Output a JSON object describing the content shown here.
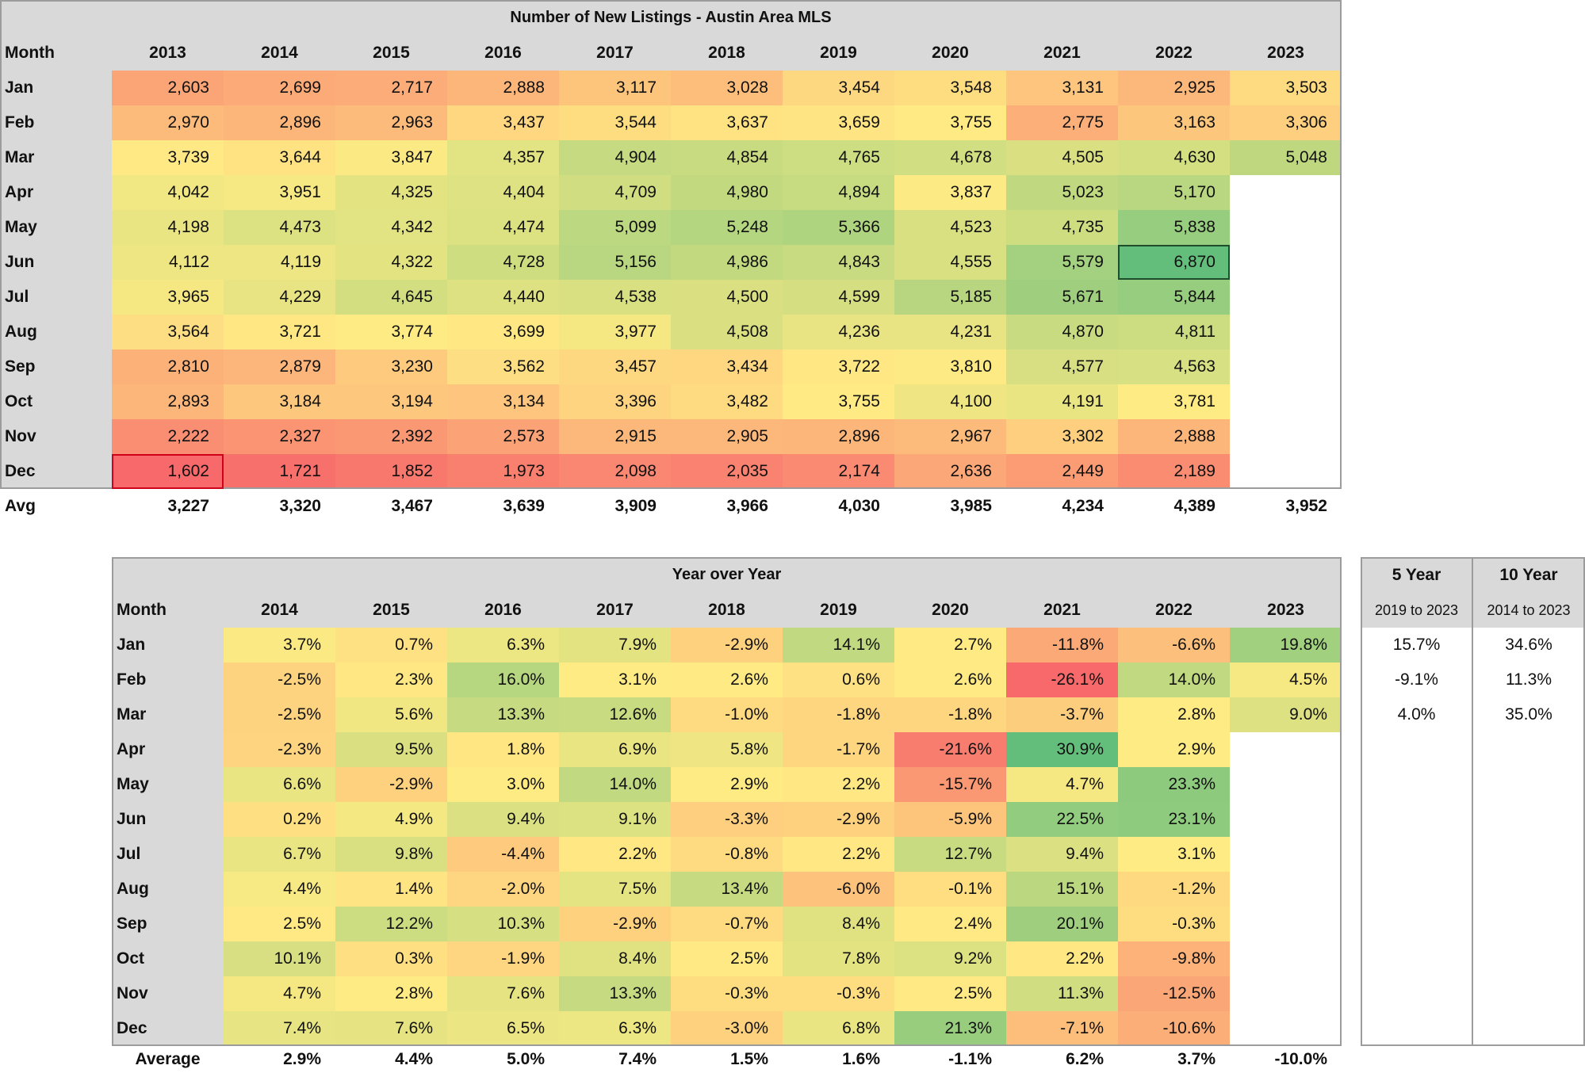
{
  "chart_data": [
    {
      "type": "table",
      "title": "Number of New Listings - Austin Area MLS",
      "row_header": "Month",
      "columns": [
        "2013",
        "2014",
        "2015",
        "2016",
        "2017",
        "2018",
        "2019",
        "2020",
        "2021",
        "2022",
        "2023"
      ],
      "rows": [
        {
          "month": "Jan",
          "values": [
            "2,603",
            "2,699",
            "2,717",
            "2,888",
            "3,117",
            "3,028",
            "3,454",
            "3,548",
            "3,131",
            "2,925",
            "3,503"
          ]
        },
        {
          "month": "Feb",
          "values": [
            "2,970",
            "2,896",
            "2,963",
            "3,437",
            "3,544",
            "3,637",
            "3,659",
            "3,755",
            "2,775",
            "3,163",
            "3,306"
          ]
        },
        {
          "month": "Mar",
          "values": [
            "3,739",
            "3,644",
            "3,847",
            "4,357",
            "4,904",
            "4,854",
            "4,765",
            "4,678",
            "4,505",
            "4,630",
            "5,048"
          ]
        },
        {
          "month": "Apr",
          "values": [
            "4,042",
            "3,951",
            "4,325",
            "4,404",
            "4,709",
            "4,980",
            "4,894",
            "3,837",
            "5,023",
            "5,170",
            ""
          ]
        },
        {
          "month": "May",
          "values": [
            "4,198",
            "4,473",
            "4,342",
            "4,474",
            "5,099",
            "5,248",
            "5,366",
            "4,523",
            "4,735",
            "5,838",
            ""
          ]
        },
        {
          "month": "Jun",
          "values": [
            "4,112",
            "4,119",
            "4,322",
            "4,728",
            "5,156",
            "4,986",
            "4,843",
            "4,555",
            "5,579",
            "6,870",
            ""
          ]
        },
        {
          "month": "Jul",
          "values": [
            "3,965",
            "4,229",
            "4,645",
            "4,440",
            "4,538",
            "4,500",
            "4,599",
            "5,185",
            "5,671",
            "5,844",
            ""
          ]
        },
        {
          "month": "Aug",
          "values": [
            "3,564",
            "3,721",
            "3,774",
            "3,699",
            "3,977",
            "4,508",
            "4,236",
            "4,231",
            "4,870",
            "4,811",
            ""
          ]
        },
        {
          "month": "Sep",
          "values": [
            "2,810",
            "2,879",
            "3,230",
            "3,562",
            "3,457",
            "3,434",
            "3,722",
            "3,810",
            "4,577",
            "4,563",
            ""
          ]
        },
        {
          "month": "Oct",
          "values": [
            "2,893",
            "3,184",
            "3,194",
            "3,134",
            "3,396",
            "3,482",
            "3,755",
            "4,100",
            "4,191",
            "3,781",
            ""
          ]
        },
        {
          "month": "Nov",
          "values": [
            "2,222",
            "2,327",
            "2,392",
            "2,573",
            "2,915",
            "2,905",
            "2,896",
            "2,967",
            "3,302",
            "2,888",
            ""
          ]
        },
        {
          "month": "Dec",
          "values": [
            "1,602",
            "1,721",
            "1,852",
            "1,973",
            "2,098",
            "2,035",
            "2,174",
            "2,636",
            "2,449",
            "2,189",
            ""
          ]
        }
      ],
      "summary_label": "Avg",
      "summary": [
        "3,227",
        "3,320",
        "3,467",
        "3,639",
        "3,909",
        "3,966",
        "4,030",
        "3,985",
        "4,234",
        "4,389",
        "3,952"
      ]
    },
    {
      "type": "table",
      "title": "Year over Year",
      "row_header": "Month",
      "columns": [
        "2014",
        "2015",
        "2016",
        "2017",
        "2018",
        "2019",
        "2020",
        "2021",
        "2022",
        "2023"
      ],
      "rows": [
        {
          "month": "Jan",
          "values": [
            "3.7%",
            "0.7%",
            "6.3%",
            "7.9%",
            "-2.9%",
            "14.1%",
            "2.7%",
            "-11.8%",
            "-6.6%",
            "19.8%"
          ]
        },
        {
          "month": "Feb",
          "values": [
            "-2.5%",
            "2.3%",
            "16.0%",
            "3.1%",
            "2.6%",
            "0.6%",
            "2.6%",
            "-26.1%",
            "14.0%",
            "4.5%"
          ]
        },
        {
          "month": "Mar",
          "values": [
            "-2.5%",
            "5.6%",
            "13.3%",
            "12.6%",
            "-1.0%",
            "-1.8%",
            "-1.8%",
            "-3.7%",
            "2.8%",
            "9.0%"
          ]
        },
        {
          "month": "Apr",
          "values": [
            "-2.3%",
            "9.5%",
            "1.8%",
            "6.9%",
            "5.8%",
            "-1.7%",
            "-21.6%",
            "30.9%",
            "2.9%",
            ""
          ]
        },
        {
          "month": "May",
          "values": [
            "6.6%",
            "-2.9%",
            "3.0%",
            "14.0%",
            "2.9%",
            "2.2%",
            "-15.7%",
            "4.7%",
            "23.3%",
            ""
          ]
        },
        {
          "month": "Jun",
          "values": [
            "0.2%",
            "4.9%",
            "9.4%",
            "9.1%",
            "-3.3%",
            "-2.9%",
            "-5.9%",
            "22.5%",
            "23.1%",
            ""
          ]
        },
        {
          "month": "Jul",
          "values": [
            "6.7%",
            "9.8%",
            "-4.4%",
            "2.2%",
            "-0.8%",
            "2.2%",
            "12.7%",
            "9.4%",
            "3.1%",
            ""
          ]
        },
        {
          "month": "Aug",
          "values": [
            "4.4%",
            "1.4%",
            "-2.0%",
            "7.5%",
            "13.4%",
            "-6.0%",
            "-0.1%",
            "15.1%",
            "-1.2%",
            ""
          ]
        },
        {
          "month": "Sep",
          "values": [
            "2.5%",
            "12.2%",
            "10.3%",
            "-2.9%",
            "-0.7%",
            "8.4%",
            "2.4%",
            "20.1%",
            "-0.3%",
            ""
          ]
        },
        {
          "month": "Oct",
          "values": [
            "10.1%",
            "0.3%",
            "-1.9%",
            "8.4%",
            "2.5%",
            "7.8%",
            "9.2%",
            "2.2%",
            "-9.8%",
            ""
          ]
        },
        {
          "month": "Nov",
          "values": [
            "4.7%",
            "2.8%",
            "7.6%",
            "13.3%",
            "-0.3%",
            "-0.3%",
            "2.5%",
            "11.3%",
            "-12.5%",
            ""
          ]
        },
        {
          "month": "Dec",
          "values": [
            "7.4%",
            "7.6%",
            "6.5%",
            "6.3%",
            "-3.0%",
            "6.8%",
            "21.3%",
            "-7.1%",
            "-10.6%",
            ""
          ]
        }
      ],
      "summary_label": "Average",
      "summary": [
        "2.9%",
        "4.4%",
        "5.0%",
        "7.4%",
        "1.5%",
        "1.6%",
        "-1.1%",
        "6.2%",
        "3.7%",
        "-10.0%"
      ]
    },
    {
      "type": "table",
      "columns": [
        {
          "title": "5 Year",
          "subtitle": "2019 to 2023",
          "values": [
            "15.7%",
            "-9.1%",
            "4.0%"
          ]
        },
        {
          "title": "10 Year",
          "subtitle": "2014 to 2023",
          "values": [
            "34.6%",
            "11.3%",
            "35.0%"
          ]
        }
      ]
    }
  ]
}
